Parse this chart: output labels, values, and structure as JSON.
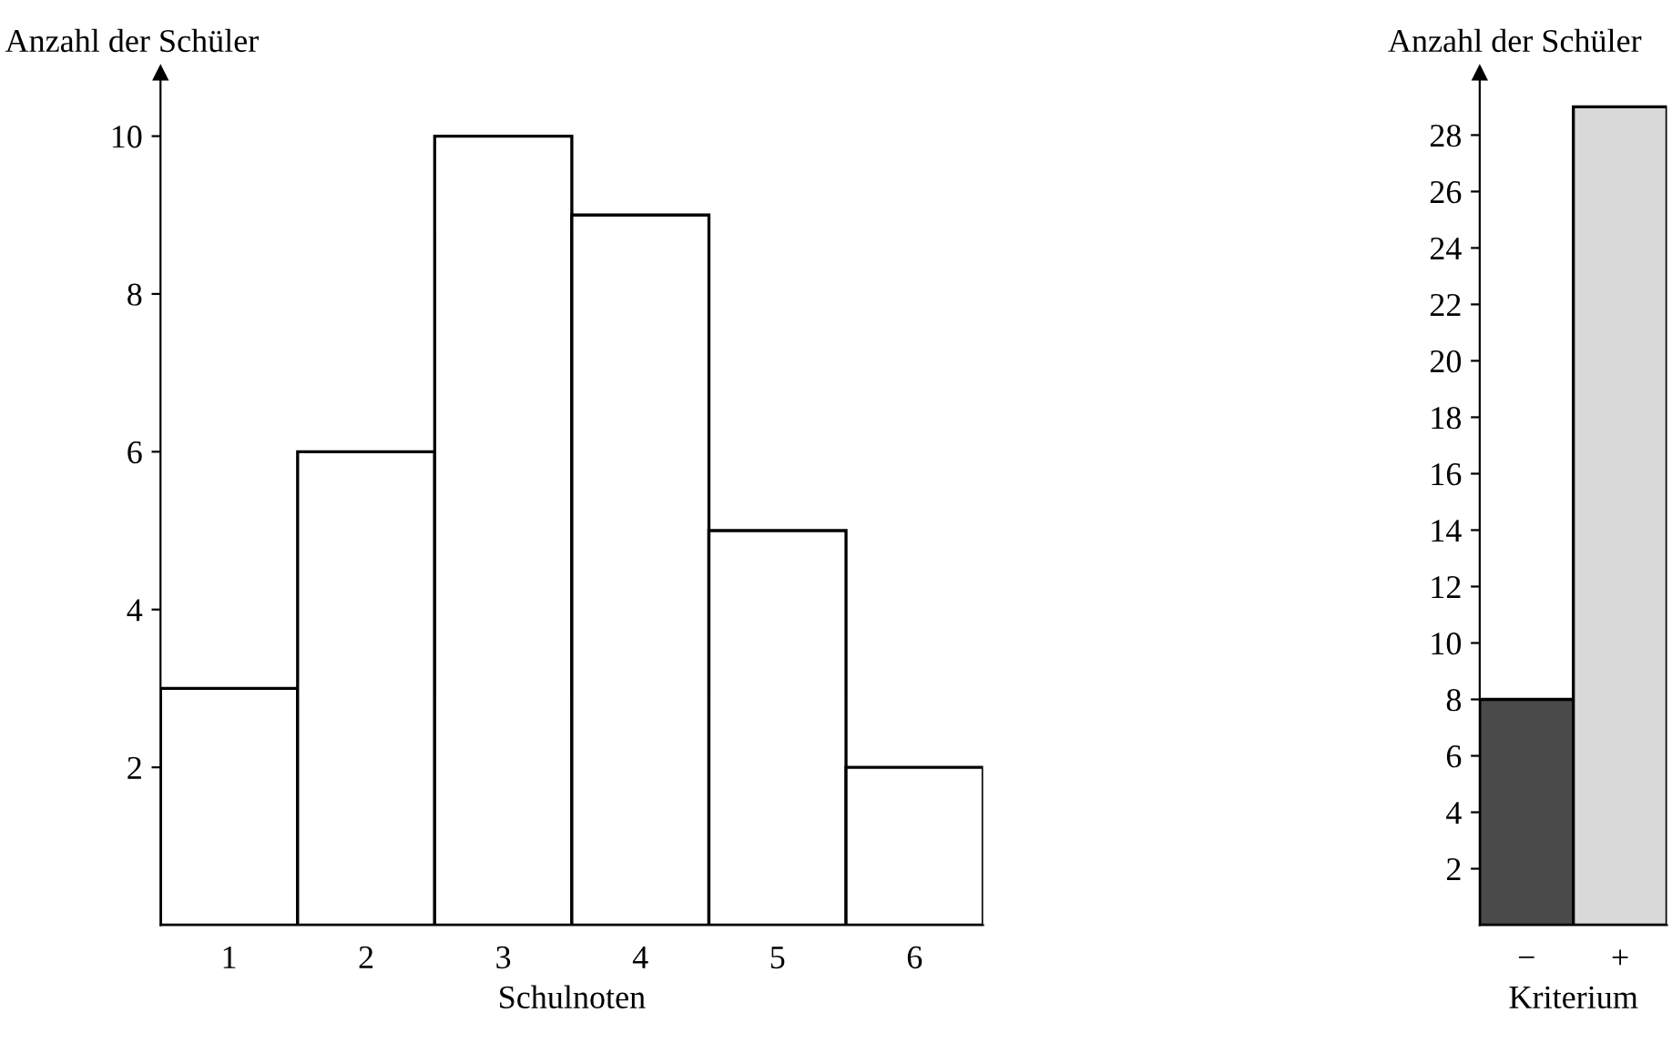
{
  "chart_data": [
    {
      "type": "bar",
      "ylabel": "Anzahl der Schüler",
      "xlabel": "Schulnoten",
      "categories": [
        "1",
        "2",
        "3",
        "4",
        "5",
        "6"
      ],
      "values": [
        3,
        6,
        10,
        9,
        5,
        2
      ],
      "color": "#ffffff",
      "ylim": [
        0,
        10.8
      ],
      "yticks": [
        2,
        4,
        6,
        8,
        10
      ]
    },
    {
      "type": "bar",
      "ylabel": "Anzahl der Schüler",
      "xlabel": "Kriterium",
      "categories": [
        "−",
        "+"
      ],
      "values": [
        8,
        29
      ],
      "colors": [
        "#4a4a4a",
        "#d9d9d9"
      ],
      "ylim": [
        0,
        30.2
      ],
      "yticks": [
        2,
        4,
        6,
        8,
        10,
        12,
        14,
        16,
        18,
        20,
        22,
        24,
        26,
        28
      ]
    }
  ]
}
